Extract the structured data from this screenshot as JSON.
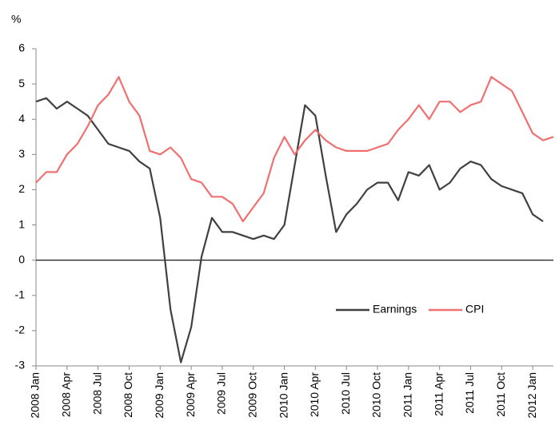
{
  "chart_data": {
    "type": "line",
    "y_label": "%",
    "categories": [
      "2008 Jan",
      null,
      null,
      "2008 Apr",
      null,
      null,
      "2008 Jul",
      null,
      null,
      "2008 Oct",
      null,
      null,
      "2009 Jan",
      null,
      null,
      "2009 Apr",
      null,
      null,
      "2009 Jul",
      null,
      null,
      "2009 Oct",
      null,
      null,
      "2010 Jan",
      null,
      null,
      "2010 Apr",
      null,
      null,
      "2010 Jul",
      null,
      null,
      "2010 Oct",
      null,
      null,
      "2011 Jan",
      null,
      null,
      "2011 Apr",
      null,
      null,
      "2011 Jul",
      null,
      null,
      "2011 Oct",
      null,
      null,
      "2012 Jan",
      null,
      null
    ],
    "series": [
      {
        "name": "Earnings",
        "color": "#404040",
        "values": [
          4.5,
          4.6,
          4.3,
          4.5,
          4.3,
          4.1,
          3.7,
          3.3,
          3.2,
          3.1,
          2.8,
          2.6,
          1.2,
          -1.4,
          -2.9,
          -1.9,
          0.1,
          1.2,
          0.8,
          0.8,
          0.7,
          0.6,
          0.7,
          0.6,
          1.0,
          2.7,
          4.4,
          4.1,
          2.4,
          0.8,
          1.3,
          1.6,
          2.0,
          2.2,
          2.2,
          1.7,
          2.5,
          2.4,
          2.7,
          2.0,
          2.2,
          2.6,
          2.8,
          2.7,
          2.3,
          2.1,
          2.0,
          1.9,
          1.3,
          1.1,
          null
        ]
      },
      {
        "name": "CPI",
        "color": "#f07070",
        "values": [
          2.2,
          2.5,
          2.5,
          3.0,
          3.3,
          3.8,
          4.4,
          4.7,
          5.2,
          4.5,
          4.1,
          3.1,
          3.0,
          3.2,
          2.9,
          2.3,
          2.2,
          1.8,
          1.8,
          1.6,
          1.1,
          1.5,
          1.9,
          2.9,
          3.5,
          3.0,
          3.4,
          3.7,
          3.4,
          3.2,
          3.1,
          3.1,
          3.1,
          3.2,
          3.3,
          3.7,
          4.0,
          4.4,
          4.0,
          4.5,
          4.5,
          4.2,
          4.4,
          4.5,
          5.2,
          5.0,
          4.8,
          4.2,
          3.6,
          3.4,
          3.5
        ]
      }
    ],
    "ylim": [
      -3,
      6
    ],
    "yticks": [
      -3,
      -2,
      -1,
      0,
      1,
      2,
      3,
      4,
      5,
      6
    ],
    "grid": false,
    "legend": "lower right"
  }
}
